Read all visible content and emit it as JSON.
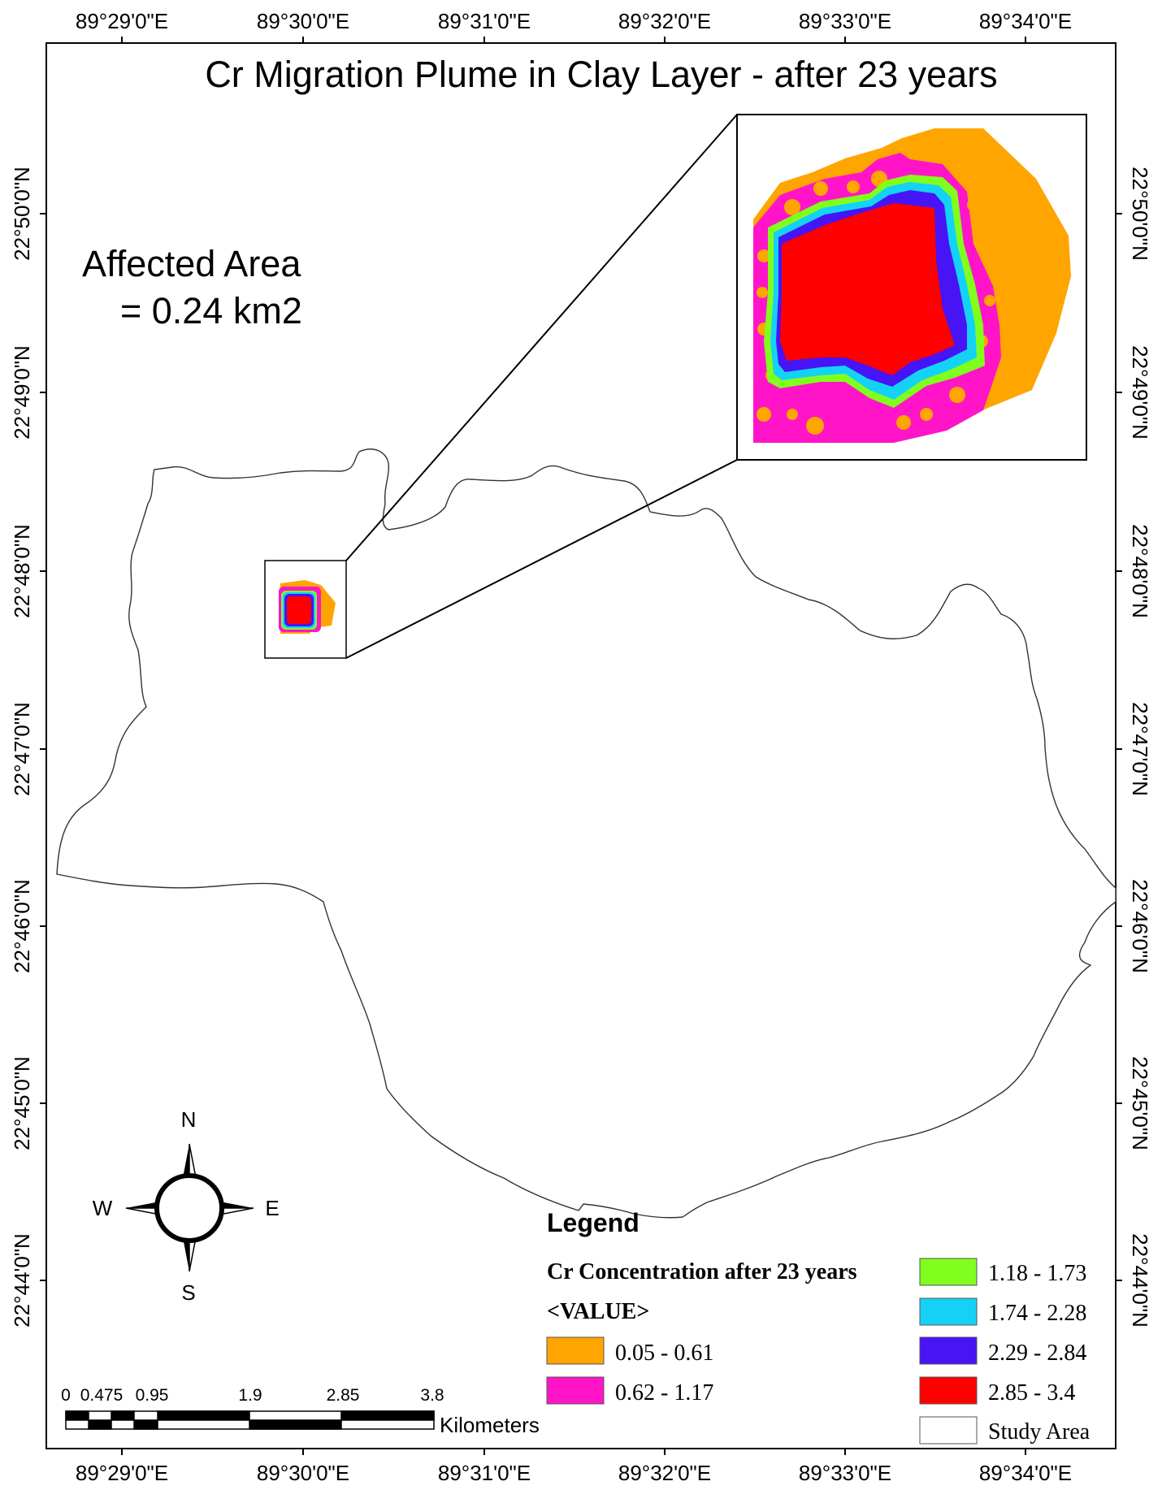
{
  "map": {
    "title": "Cr Migration Plume in Clay Layer - after 23 years",
    "affected_area_label": "Affected Area",
    "affected_area_value": "= 0.24 km2",
    "longitude_labels": [
      "89°29'0\"E",
      "89°30'0\"E",
      "89°31'0\"E",
      "89°32'0\"E",
      "89°33'0\"E",
      "89°34'0\"E"
    ],
    "latitude_labels": [
      "22°50'0\"N",
      "22°49'0\"N",
      "22°48'0\"N",
      "22°47'0\"N",
      "22°46'0\"N",
      "22°45'0\"N",
      "22°44'0\"N"
    ]
  },
  "north_arrow": {
    "north": "N",
    "south": "S",
    "east": "E",
    "west": "W"
  },
  "scale_bar": {
    "ticks": [
      "0",
      "0.475",
      "0.95",
      "1.9",
      "2.85",
      "3.8"
    ],
    "unit": "Kilometers"
  },
  "legend": {
    "title": "Legend",
    "subtitle": "Cr Concentration after 23 years",
    "field": "<VALUE>",
    "classes": [
      {
        "label": "0.05 - 0.61",
        "color": "#ffa500"
      },
      {
        "label": "0.62 - 1.17",
        "color": "#ff14c8"
      },
      {
        "label": "1.18 - 1.73",
        "color": "#80ff1e"
      },
      {
        "label": "1.74 - 2.28",
        "color": "#14d2f5"
      },
      {
        "label": "2.29 - 2.84",
        "color": "#4614f5"
      },
      {
        "label": "2.85 - 3.4",
        "color": "#ff0000"
      }
    ],
    "study_area": {
      "label": "Study Area",
      "color": "#ffffff"
    }
  }
}
